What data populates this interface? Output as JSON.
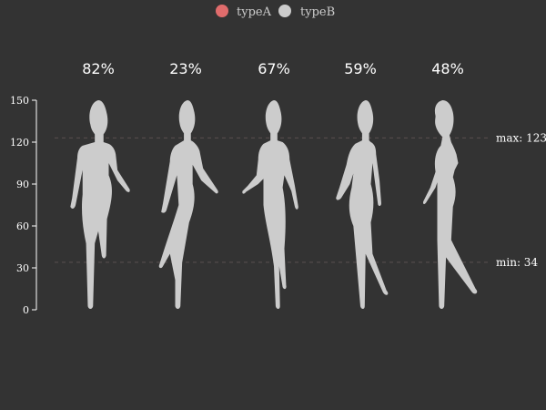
{
  "chart_data": {
    "type": "bar",
    "categories": [
      "",
      "",
      "",
      "",
      ""
    ],
    "ylim": [
      0,
      150
    ],
    "yticks": [
      "0",
      "30",
      "60",
      "90",
      "120",
      "150"
    ],
    "series": [
      {
        "name": "typeA",
        "color": "#e06c6c"
      },
      {
        "name": "typeB",
        "color": "#cccccc"
      }
    ],
    "values": [
      82,
      23,
      67,
      59,
      48
    ],
    "labels": [
      "82%",
      "23%",
      "67%",
      "59%",
      "48%"
    ],
    "mark_lines": [
      {
        "label": "max: 123",
        "value": 123
      },
      {
        "label": "min: 34",
        "value": 34
      }
    ],
    "legend_position": "top-center",
    "grid": false
  },
  "colors": {
    "background": "#333333",
    "typeA": "#e06c6c",
    "typeB": "#cccccc",
    "axis": "#ffffff"
  }
}
